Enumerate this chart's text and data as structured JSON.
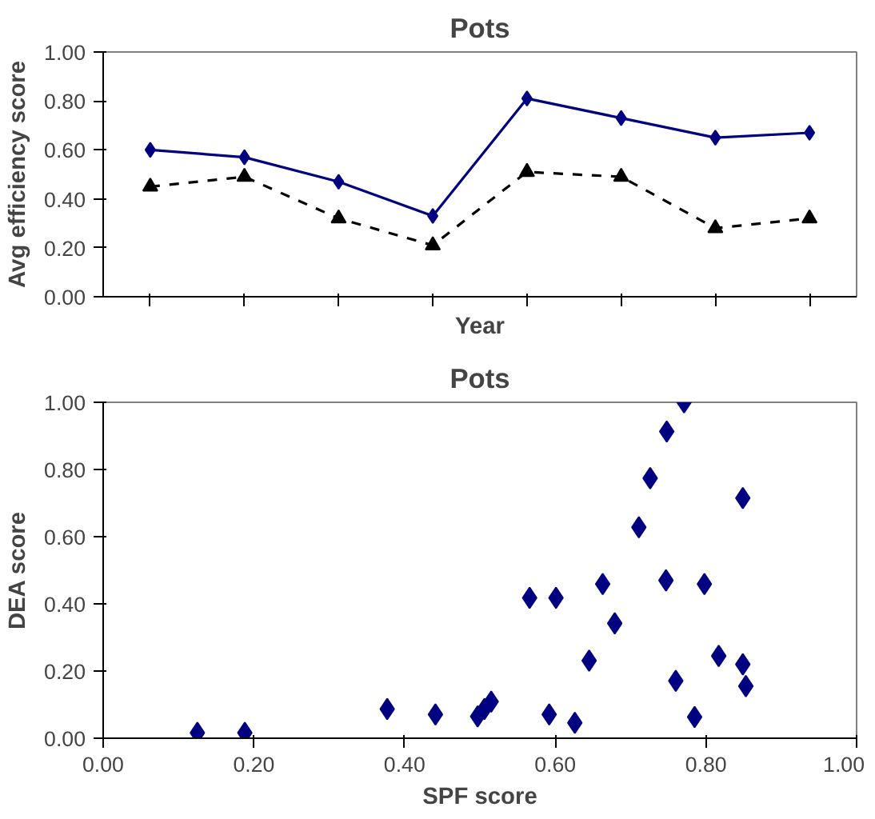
{
  "chart_data": [
    {
      "type": "line",
      "title": "Pots",
      "ylabel": "Avg efficiency score",
      "xlabel": "Year",
      "categories": [
        null,
        null,
        null,
        null,
        null,
        null,
        null,
        null
      ],
      "ylim": [
        0,
        1
      ],
      "yticks": [
        {
          "value": 0,
          "label": "0.00"
        },
        {
          "value": 0.2,
          "label": "0.20"
        },
        {
          "value": 0.4,
          "label": "0.40"
        },
        {
          "value": 0.6,
          "label": "0.60"
        },
        {
          "value": 0.8,
          "label": "0.80"
        },
        {
          "value": 1,
          "label": "1.00"
        }
      ],
      "grid": false,
      "series": [
        {
          "color": "#000080",
          "values": [
            0.6,
            0.57,
            0.47,
            0.33,
            0.81,
            0.73,
            0.65,
            0.67
          ],
          "marker": "diamond",
          "line_style": "solid"
        },
        {
          "color": "#000000",
          "values": [
            0.45,
            0.49,
            0.32,
            0.21,
            0.51,
            0.49,
            0.28,
            0.32
          ],
          "marker": "triangle",
          "line_style": "dashed"
        }
      ]
    },
    {
      "type": "scatter",
      "title": "Pots",
      "xlabel": "SPF score",
      "ylabel": "DEA score",
      "xlim": [
        0,
        1
      ],
      "ylim": [
        0,
        1
      ],
      "xticks": [
        {
          "value": 0,
          "label": "0.00"
        },
        {
          "value": 0.2,
          "label": "0.20"
        },
        {
          "value": 0.4,
          "label": "0.40"
        },
        {
          "value": 0.6,
          "label": "0.60"
        },
        {
          "value": 0.8,
          "label": "0.80"
        },
        {
          "value": 1,
          "label": "1.00"
        }
      ],
      "yticks": [
        {
          "value": 0,
          "label": "0.00"
        },
        {
          "value": 0.2,
          "label": "0.20"
        },
        {
          "value": 0.4,
          "label": "0.40"
        },
        {
          "value": 0.6,
          "label": "0.60"
        },
        {
          "value": 0.8,
          "label": "0.80"
        },
        {
          "value": 1,
          "label": "1.00"
        }
      ],
      "grid": false,
      "marker": "diamond",
      "series": [
        {
          "color": "#000080",
          "x": [
            0.125,
            0.188,
            0.377,
            0.441,
            0.497,
            0.506,
            0.515,
            0.566,
            0.601,
            0.592,
            0.626,
            0.645,
            0.663,
            0.679,
            0.711,
            0.726,
            0.748,
            0.771,
            0.747,
            0.76,
            0.785,
            0.798,
            0.817,
            0.849,
            0.849,
            0.853
          ],
          "values": [
            0.016,
            0.016,
            0.087,
            0.071,
            0.065,
            0.087,
            0.109,
            0.418,
            0.418,
            0.071,
            0.046,
            0.231,
            0.459,
            0.342,
            0.628,
            0.774,
            0.913,
            1.0,
            0.47,
            0.171,
            0.063,
            0.459,
            0.245,
            0.22,
            0.715,
            0.155
          ]
        }
      ]
    }
  ]
}
